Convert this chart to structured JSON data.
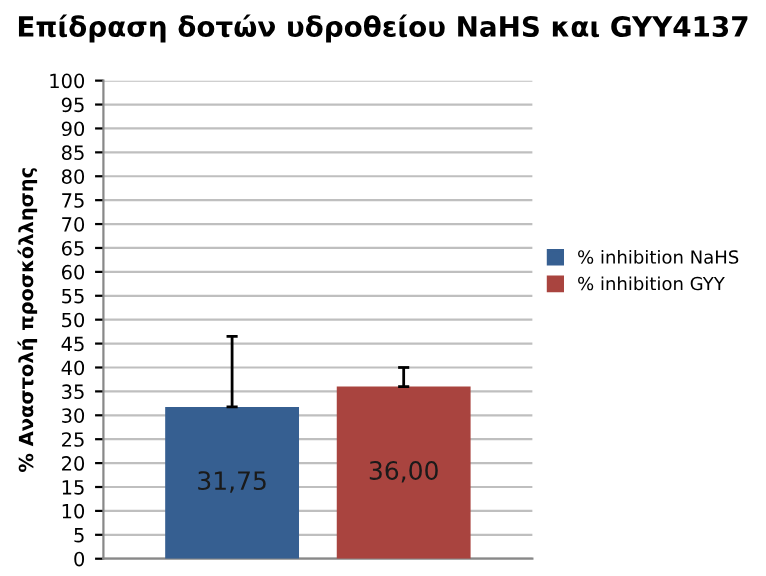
{
  "chart_data": {
    "type": "bar",
    "title": "Επίδραση δοτών υδροθείου NaHS και GYY4137",
    "ylabel": "% Αναστολή προσκόλλησης",
    "categories": [
      null
    ],
    "series": [
      {
        "name": "% inhibition NaHS",
        "color": "#365f91",
        "values": [
          31.75
        ],
        "errors": [
          [
            31.75,
            46.5
          ]
        ],
        "value_labels": [
          "31,75"
        ]
      },
      {
        "name": "% inhibition GYY",
        "color": "#a9443f",
        "values": [
          36.0
        ],
        "errors": [
          [
            36.0,
            40.0
          ]
        ],
        "value_labels": [
          "36,00"
        ]
      }
    ],
    "ylim": [
      0,
      100
    ],
    "yticks": [
      0,
      5,
      10,
      15,
      20,
      25,
      30,
      35,
      40,
      45,
      50,
      55,
      60,
      65,
      70,
      75,
      80,
      85,
      90,
      95,
      100
    ],
    "grid": "y",
    "legend": "right"
  }
}
